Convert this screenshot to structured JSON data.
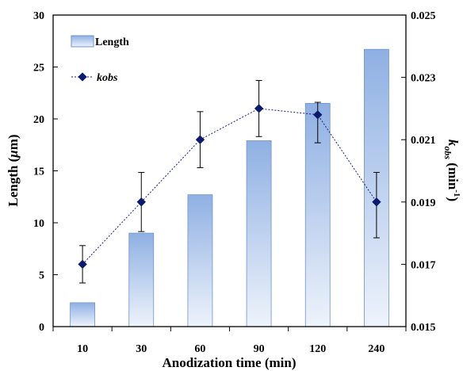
{
  "chart_data": {
    "type": "bar",
    "categories": [
      "10",
      "30",
      "60",
      "90",
      "120",
      "240"
    ],
    "series": [
      {
        "name": "Length",
        "kind": "bar",
        "axis": "left",
        "values": [
          2.3,
          9.0,
          12.7,
          17.9,
          21.5,
          26.7
        ]
      },
      {
        "name": "kobs",
        "kind": "line-markers",
        "axis": "right",
        "values": [
          0.017,
          0.019,
          0.021,
          0.022,
          0.0218,
          0.019
        ],
        "error_low": [
          0.0164,
          0.01805,
          0.0201,
          0.0211,
          0.0209,
          0.01785
        ],
        "error_high": [
          0.0176,
          0.01995,
          0.0219,
          0.0229,
          0.0222,
          0.01995
        ]
      }
    ],
    "xlabel": "Anodization time (min)",
    "ylabel_left_main": "Length (",
    "ylabel_left_unit": "μ",
    "ylabel_left_end": "m)",
    "ylabel_right_main": "k",
    "ylabel_right_sub": "obs",
    "ylabel_right_unit": " (min",
    "ylabel_right_sup": "-1",
    "ylabel_right_end": ")",
    "ylim_left": [
      0,
      30
    ],
    "yticks_left": [
      "0",
      "5",
      "10",
      "15",
      "20",
      "25",
      "30"
    ],
    "ylim_right": [
      0.015,
      0.025
    ],
    "yticks_right": [
      "0.015",
      "0.017",
      "0.019",
      "0.021",
      "0.023",
      "0.025"
    ],
    "legend_position": "top-left",
    "grid": false,
    "colors": {
      "bar_top": "#8fb0e3",
      "bar_bottom": "#eef3fb",
      "bar_edge": "#6f93c8",
      "line": "#1a1a8c",
      "marker": "#0a1a6e"
    }
  }
}
